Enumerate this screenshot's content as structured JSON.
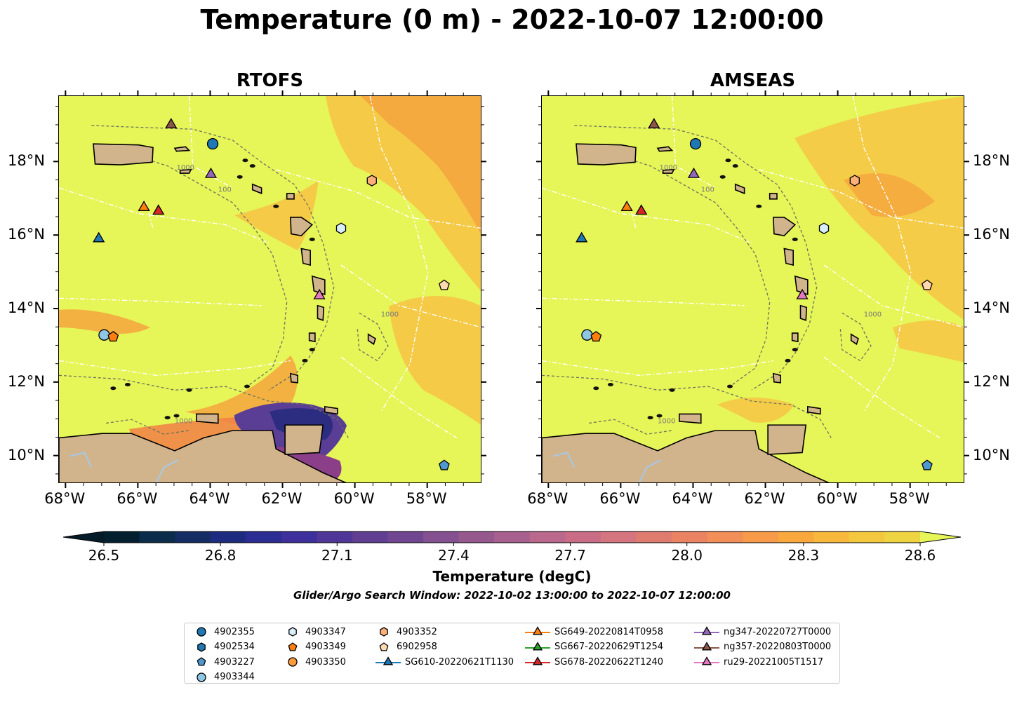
{
  "title": "Temperature (0 m) - 2022-10-07 12:00:00",
  "panels": [
    {
      "title": "RTOFS"
    },
    {
      "title": "AMSEAS"
    }
  ],
  "axes": {
    "lon_ticks": [
      "68°W",
      "66°W",
      "64°W",
      "62°W",
      "60°W",
      "58°W"
    ],
    "lat_ticks": [
      "18°N",
      "16°N",
      "14°N",
      "12°N",
      "10°N"
    ]
  },
  "colorbar": {
    "title": "Temperature (degC)",
    "ticks": [
      "26.5",
      "26.8",
      "27.1",
      "27.4",
      "27.7",
      "28.0",
      "28.3",
      "28.6"
    ],
    "min": 26.5,
    "max": 28.6,
    "extend": "both"
  },
  "search_window": "Glider/Argo Search Window: 2022-10-02 13:00:00 to 2022-10-07 12:00:00",
  "contour_labels": [
    "1000",
    "100"
  ],
  "colors": {
    "land": "#d2b48c",
    "ocean_warm": "#e6f557",
    "lake": "#a6c8e8"
  },
  "chart_data": {
    "type": "map",
    "extent": {
      "lon": [
        -68.2,
        -56.5
      ],
      "lat": [
        9.25,
        19.8
      ]
    },
    "colorbar_range": [
      26.5,
      28.6
    ],
    "platforms": [
      {
        "id": "4902355",
        "marker": "circle",
        "color": "#1f77b4",
        "lon": -63.95,
        "lat": 18.5
      },
      {
        "id": "4902534",
        "marker": "hexagon",
        "color": "#1f77b4",
        "lon": null,
        "lat": null
      },
      {
        "id": "4903227",
        "marker": "pentagon",
        "color": "#4f97cf",
        "lon": -57.55,
        "lat": 9.75
      },
      {
        "id": "4903344",
        "marker": "circle",
        "color": "#8ec6e6",
        "lon": -66.95,
        "lat": 13.3
      },
      {
        "id": "4903347",
        "marker": "hexagon",
        "color": "#d8eefa",
        "lon": -60.4,
        "lat": 16.2
      },
      {
        "id": "4903349",
        "marker": "pentagon",
        "color": "#ff7f0e",
        "lon": -66.7,
        "lat": 13.25
      },
      {
        "id": "4903350",
        "marker": "circle",
        "color": "#ff9a3c",
        "lon": null,
        "lat": null
      },
      {
        "id": "4903352",
        "marker": "hexagon",
        "color": "#ffb07a",
        "lon": -59.55,
        "lat": 17.5
      },
      {
        "id": "6902958",
        "marker": "pentagon",
        "color": "#ffd9b0",
        "lon": -57.55,
        "lat": 14.65
      },
      {
        "id": "SG610-20220621T1130",
        "marker": "triangle",
        "color": "#1f77b4",
        "lon": -67.1,
        "lat": 15.95
      },
      {
        "id": "SG649-20220814T0958",
        "marker": "triangle",
        "color": "#ff7f0e",
        "lon": -65.85,
        "lat": 16.8
      },
      {
        "id": "SG667-20220629T1254",
        "marker": "triangle",
        "color": "#2ca02c",
        "lon": null,
        "lat": null
      },
      {
        "id": "SG678-20220622T1240",
        "marker": "triangle",
        "color": "#d62728",
        "lon": -65.45,
        "lat": 16.7
      },
      {
        "id": "ng347-20220727T0000",
        "marker": "triangle",
        "color": "#9467bd",
        "lon": -64.0,
        "lat": 17.7
      },
      {
        "id": "ng357-20220803T0000",
        "marker": "triangle",
        "color": "#8c564b",
        "lon": -65.1,
        "lat": 19.05
      },
      {
        "id": "ru29-20221005T1517",
        "marker": "triangle",
        "color": "#e377c2",
        "lon": -61.0,
        "lat": 14.4
      }
    ]
  },
  "legend": {
    "items": [
      {
        "label": "4902355",
        "marker": "circle",
        "color": "#1f77b4",
        "line": false
      },
      {
        "label": "4902534",
        "marker": "hexagon",
        "color": "#1f77b4",
        "line": false
      },
      {
        "label": "4903227",
        "marker": "pentagon",
        "color": "#4f97cf",
        "line": false
      },
      {
        "label": "4903344",
        "marker": "circle",
        "color": "#8ec6e6",
        "line": false
      },
      {
        "label": "4903347",
        "marker": "hexagon",
        "color": "#d8eefa",
        "line": false
      },
      {
        "label": "4903349",
        "marker": "pentagon",
        "color": "#ff7f0e",
        "line": false
      },
      {
        "label": "4903350",
        "marker": "circle",
        "color": "#ff9a3c",
        "line": false
      },
      {
        "label": "4903352",
        "marker": "hexagon",
        "color": "#ffb07a",
        "line": false
      },
      {
        "label": "6902958",
        "marker": "pentagon",
        "color": "#ffd9b0",
        "line": false
      },
      {
        "label": "SG610-20220621T1130",
        "marker": "triangle",
        "color": "#1f77b4",
        "line": true
      },
      {
        "label": "SG649-20220814T0958",
        "marker": "triangle",
        "color": "#ff7f0e",
        "line": true
      },
      {
        "label": "SG667-20220629T1254",
        "marker": "triangle",
        "color": "#2ca02c",
        "line": true
      },
      {
        "label": "SG678-20220622T1240",
        "marker": "triangle",
        "color": "#d62728",
        "line": true
      },
      {
        "label": "ng347-20220727T0000",
        "marker": "triangle",
        "color": "#9467bd",
        "line": true
      },
      {
        "label": "ng357-20220803T0000",
        "marker": "triangle",
        "color": "#8c564b",
        "line": true
      },
      {
        "label": "ru29-20221005T1517",
        "marker": "triangle",
        "color": "#e377c2",
        "line": true
      }
    ]
  }
}
